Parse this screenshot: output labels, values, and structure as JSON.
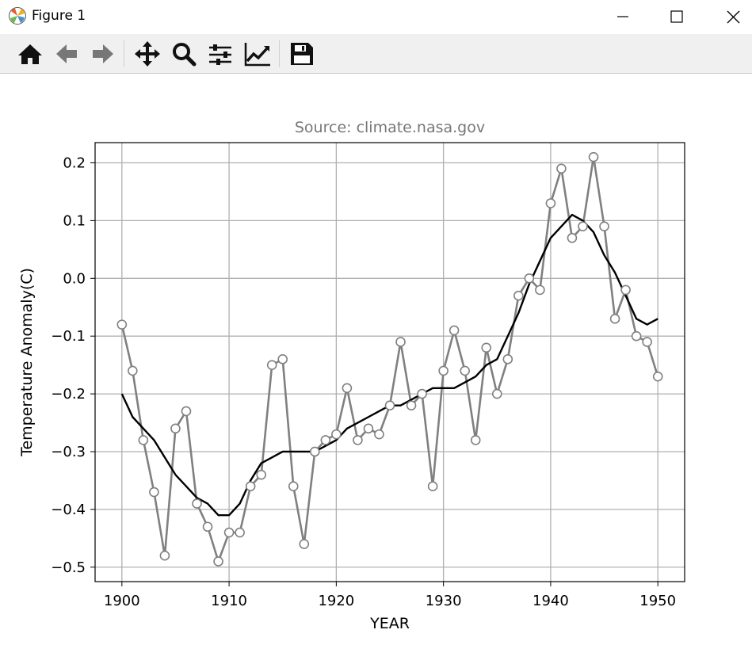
{
  "window": {
    "title": "Figure 1"
  },
  "toolbar": {
    "buttons": [
      {
        "name": "home-icon"
      },
      {
        "name": "back-arrow-icon"
      },
      {
        "name": "forward-arrow-icon"
      },
      {
        "name": "pan-move-icon"
      },
      {
        "name": "zoom-magnifier-icon"
      },
      {
        "name": "configure-subplots-icon"
      },
      {
        "name": "edit-axis-curves-icon"
      },
      {
        "name": "save-floppy-icon"
      }
    ]
  },
  "colors": {
    "raw_series": "#808080",
    "smoothed_series": "#000000",
    "marker_face": "#ffffff",
    "grid": "#b0b0b0",
    "title": "#777777"
  },
  "chart_data": {
    "type": "line",
    "title": "Source: climate.nasa.gov",
    "xlabel": "YEAR",
    "ylabel": "Temperature Anomaly(C)",
    "xlim": [
      1897.5,
      1952.5
    ],
    "ylim": [
      -0.525,
      0.235
    ],
    "grid": true,
    "x_ticks": [
      1900,
      1910,
      1920,
      1930,
      1940,
      1950
    ],
    "y_ticks": [
      0.2,
      0.1,
      0.0,
      -0.1,
      -0.2,
      -0.3,
      -0.4,
      -0.5
    ],
    "x_tick_labels": [
      "1900",
      "1910",
      "1920",
      "1930",
      "1940",
      "1950"
    ],
    "y_tick_labels": [
      "0.2",
      "0.1",
      "0.0",
      "−0.1",
      "−0.2",
      "−0.3",
      "−0.4",
      "−0.5"
    ],
    "x": [
      1900,
      1901,
      1902,
      1903,
      1904,
      1905,
      1906,
      1907,
      1908,
      1909,
      1910,
      1911,
      1912,
      1913,
      1914,
      1915,
      1916,
      1917,
      1918,
      1919,
      1920,
      1921,
      1922,
      1923,
      1924,
      1925,
      1926,
      1927,
      1928,
      1929,
      1930,
      1931,
      1932,
      1933,
      1934,
      1935,
      1936,
      1937,
      1938,
      1939,
      1940,
      1941,
      1942,
      1943,
      1944,
      1945,
      1946,
      1947,
      1948,
      1949,
      1950
    ],
    "series": [
      {
        "style": "gray line with open circle markers",
        "values": [
          -0.08,
          -0.16,
          -0.28,
          -0.37,
          -0.48,
          -0.26,
          -0.23,
          -0.39,
          -0.43,
          -0.49,
          -0.44,
          -0.44,
          -0.36,
          -0.34,
          -0.15,
          -0.14,
          -0.36,
          -0.46,
          -0.3,
          -0.28,
          -0.27,
          -0.19,
          -0.28,
          -0.26,
          -0.27,
          -0.22,
          -0.11,
          -0.22,
          -0.2,
          -0.36,
          -0.16,
          -0.09,
          -0.16,
          -0.28,
          -0.12,
          -0.2,
          -0.14,
          -0.03,
          0.0,
          -0.02,
          0.13,
          0.19,
          0.07,
          0.09,
          0.21,
          0.09,
          -0.07,
          -0.02,
          -0.1,
          -0.11,
          -0.17
        ]
      },
      {
        "style": "black smoothed line",
        "values": [
          -0.2,
          -0.24,
          -0.26,
          -0.28,
          -0.31,
          -0.34,
          -0.36,
          -0.38,
          -0.39,
          -0.41,
          -0.41,
          -0.39,
          -0.35,
          -0.32,
          -0.31,
          -0.3,
          -0.3,
          -0.3,
          -0.3,
          -0.29,
          -0.28,
          -0.26,
          -0.25,
          -0.24,
          -0.23,
          -0.22,
          -0.22,
          -0.21,
          -0.2,
          -0.19,
          -0.19,
          -0.19,
          -0.18,
          -0.17,
          -0.15,
          -0.14,
          -0.1,
          -0.06,
          -0.01,
          0.03,
          0.07,
          0.09,
          0.11,
          0.1,
          0.08,
          0.04,
          0.01,
          -0.03,
          -0.07,
          -0.08,
          -0.07
        ]
      }
    ]
  }
}
